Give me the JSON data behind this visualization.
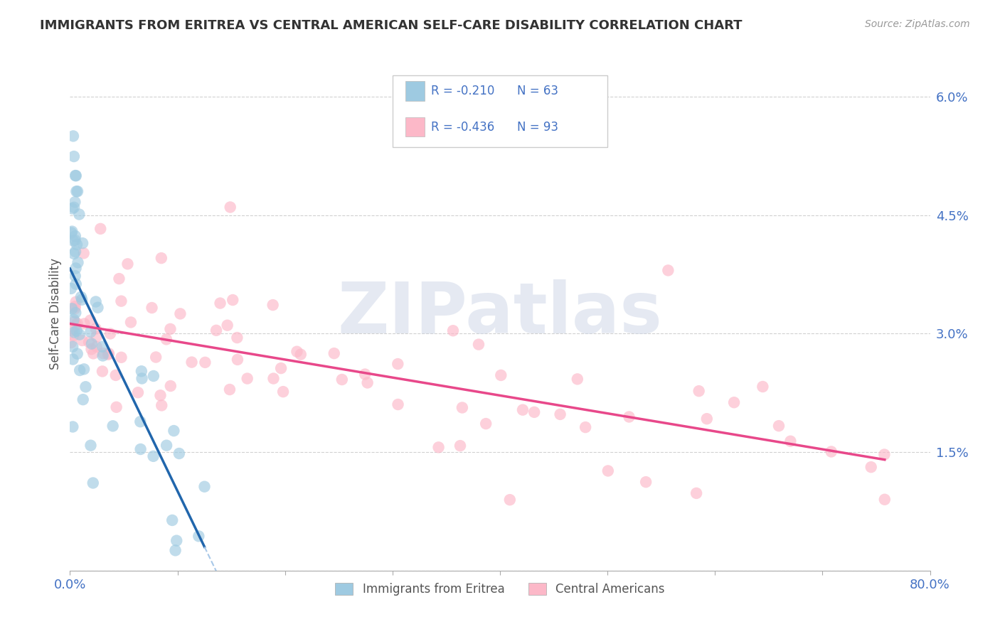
{
  "title": "IMMIGRANTS FROM ERITREA VS CENTRAL AMERICAN SELF-CARE DISABILITY CORRELATION CHART",
  "source": "Source: ZipAtlas.com",
  "ylabel": "Self-Care Disability",
  "y_ticks": [
    0.0,
    0.015,
    0.03,
    0.045,
    0.06
  ],
  "y_tick_labels": [
    "",
    "1.5%",
    "3.0%",
    "4.5%",
    "6.0%"
  ],
  "xlim": [
    0.0,
    0.8
  ],
  "ylim": [
    0.0,
    0.065
  ],
  "legend_r1": "-0.210",
  "legend_n1": "63",
  "legend_r2": "-0.436",
  "legend_n2": "93",
  "series1_color": "#9ecae1",
  "series2_color": "#fcb8c8",
  "trend1_color": "#2166ac",
  "trend2_color": "#e8488a",
  "trend1_dash_color": "#a8c8e8",
  "background_color": "#ffffff",
  "grid_color": "#cccccc",
  "watermark_text": "ZIPatlas",
  "title_color": "#333333",
  "axis_label_color": "#555555",
  "tick_color": "#4472c4",
  "legend_label1": "Immigrants from Eritrea",
  "legend_label2": "Central Americans",
  "x_ticks": [
    0.0,
    0.1,
    0.2,
    0.3,
    0.4,
    0.5,
    0.6,
    0.7,
    0.8
  ]
}
